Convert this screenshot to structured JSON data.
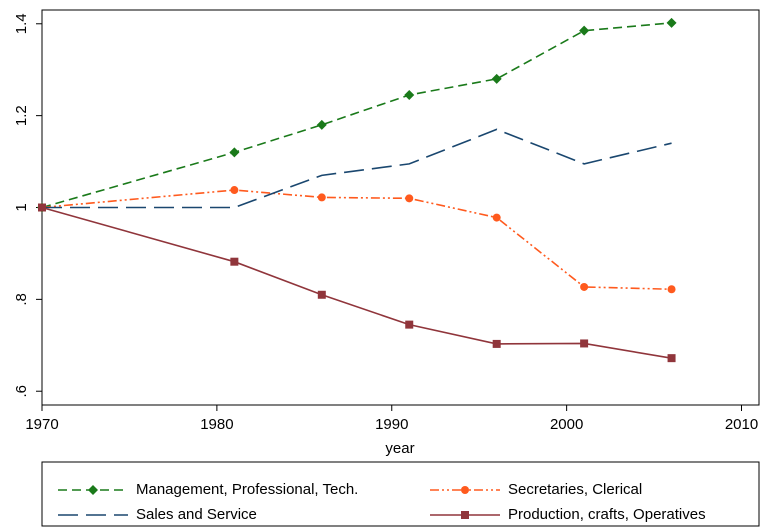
{
  "chart_data": {
    "type": "line",
    "x": [
      1970,
      1981,
      1986,
      1991,
      1996,
      2001,
      2006
    ],
    "xlim": [
      1970,
      2011
    ],
    "xticks": [
      1970,
      1980,
      1990,
      2000,
      2010
    ],
    "xlabel": "year",
    "ylim": [
      0.57,
      1.43
    ],
    "yticks": [
      {
        "value": 0.6,
        "label": ".6"
      },
      {
        "value": 0.8,
        "label": ".8"
      },
      1,
      1.2,
      1.4
    ],
    "legend": "bottom",
    "series": [
      {
        "name": "Management, Professional, Tech.",
        "color": "#1a7a1a",
        "dash": "9 5",
        "marker": "diamond",
        "values": [
          1,
          1.12,
          1.18,
          1.245,
          1.28,
          1.385,
          1.402
        ]
      },
      {
        "name": "Secretaries, Clerical",
        "color": "#ff5a1e",
        "dash": "9 3 2 3 2 3",
        "marker": "circle",
        "values": [
          1,
          1.038,
          1.022,
          1.02,
          0.978,
          0.827,
          0.822
        ]
      },
      {
        "name": "Sales and Service",
        "color": "#1a476f",
        "dash": "20 8",
        "marker": "none",
        "values": [
          1,
          1,
          1.07,
          1.095,
          1.17,
          1.095,
          1.14
        ]
      },
      {
        "name": "Production, crafts, Operatives",
        "color": "#90353b",
        "dash": "none",
        "marker": "square",
        "values": [
          1,
          0.882,
          0.81,
          0.745,
          0.703,
          0.704,
          0.672
        ]
      }
    ]
  }
}
